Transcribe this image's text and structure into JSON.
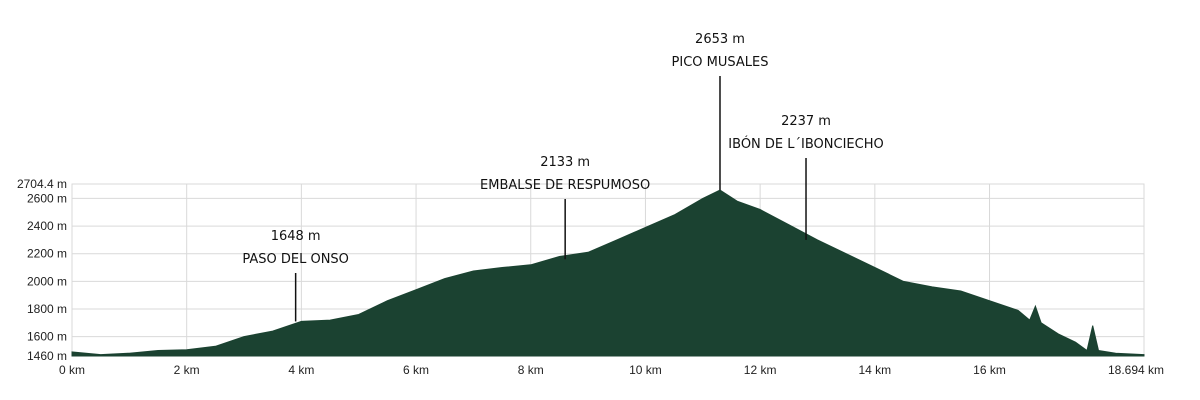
{
  "chart_data": {
    "type": "area",
    "title": "",
    "xlabel": "",
    "ylabel": "",
    "xlim": [
      0,
      18.694
    ],
    "ylim": [
      1460,
      2704.4
    ],
    "grid": true,
    "legend": "none",
    "x_ticks": [
      0,
      2,
      4,
      6,
      8,
      10,
      12,
      14,
      16,
      18.694
    ],
    "x_tick_labels": [
      "0 km",
      "2 km",
      "4 km",
      "6 km",
      "8 km",
      "10 km",
      "12 km",
      "14 km",
      "16 km",
      "18.694 km"
    ],
    "y_ticks": [
      1460,
      1600,
      1800,
      2000,
      2200,
      2400,
      2600,
      2704.4
    ],
    "y_tick_labels": [
      "1460 m",
      "1600 m",
      "1800 m",
      "2000 m",
      "2200 m",
      "2400 m",
      "2600 m",
      "2704.4 m"
    ],
    "series": [
      {
        "fill_color": "#1b4231",
        "points": [
          [
            0,
            1490
          ],
          [
            0.5,
            1470
          ],
          [
            1,
            1480
          ],
          [
            1.5,
            1500
          ],
          [
            2,
            1505
          ],
          [
            2.5,
            1530
          ],
          [
            3,
            1600
          ],
          [
            3.5,
            1640
          ],
          [
            4,
            1710
          ],
          [
            4.5,
            1720
          ],
          [
            5,
            1760
          ],
          [
            5.5,
            1860
          ],
          [
            6,
            1940
          ],
          [
            6.5,
            2020
          ],
          [
            7,
            2075
          ],
          [
            7.5,
            2100
          ],
          [
            8,
            2120
          ],
          [
            8.5,
            2180
          ],
          [
            9,
            2210
          ],
          [
            9.5,
            2300
          ],
          [
            10,
            2390
          ],
          [
            10.5,
            2480
          ],
          [
            11,
            2600
          ],
          [
            11.3,
            2660
          ],
          [
            11.6,
            2580
          ],
          [
            12,
            2520
          ],
          [
            12.5,
            2410
          ],
          [
            13,
            2300
          ],
          [
            13.5,
            2200
          ],
          [
            14,
            2100
          ],
          [
            14.5,
            2000
          ],
          [
            15,
            1960
          ],
          [
            15.5,
            1930
          ],
          [
            16,
            1860
          ],
          [
            16.5,
            1790
          ],
          [
            16.7,
            1720
          ],
          [
            16.8,
            1820
          ],
          [
            16.9,
            1700
          ],
          [
            17.2,
            1620
          ],
          [
            17.5,
            1560
          ],
          [
            17.7,
            1500
          ],
          [
            17.8,
            1680
          ],
          [
            17.9,
            1500
          ],
          [
            18.2,
            1480
          ],
          [
            18.694,
            1470
          ]
        ]
      }
    ],
    "annotations": [
      {
        "x": 3.9,
        "y": 1710,
        "elevation": "1648 m",
        "name": "PASO DEL ONSO"
      },
      {
        "x": 8.6,
        "y": 2160,
        "elevation": "2133 m",
        "name": "EMBALSE DE RESPUMOSO"
      },
      {
        "x": 11.3,
        "y": 2660,
        "elevation": "2653 m",
        "name": "PICO MUSALES"
      },
      {
        "x": 12.8,
        "y": 2300,
        "elevation": "2237 m",
        "name": "IBÓN DE L´IBONCIECHO"
      }
    ]
  }
}
